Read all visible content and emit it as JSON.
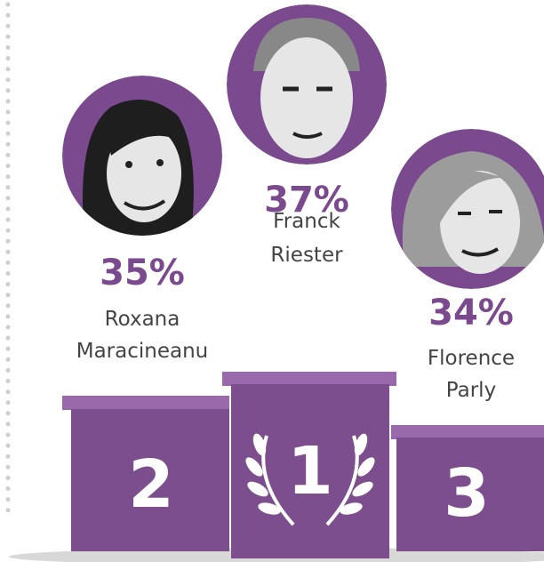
{
  "podium": [
    {
      "rank": "2",
      "percent": "35%",
      "name": [
        "Roxana",
        "Maracineanu"
      ]
    },
    {
      "rank": "1",
      "percent": "37%",
      "name": [
        "Franck",
        "Riester"
      ]
    },
    {
      "rank": "3",
      "percent": "34%",
      "name": [
        "Florence",
        "Parly"
      ]
    }
  ]
}
